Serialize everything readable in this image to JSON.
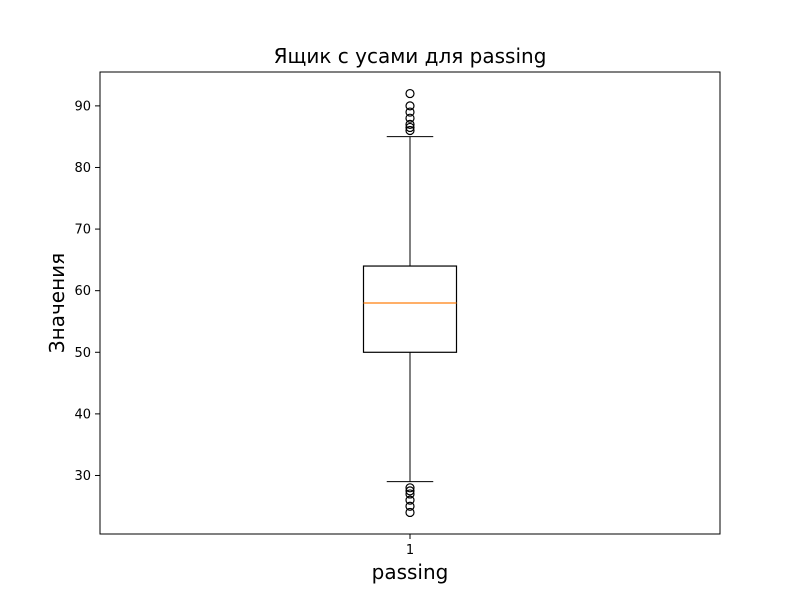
{
  "chart_data": {
    "type": "box",
    "title": "Ящик с усами для passing",
    "xlabel": "passing",
    "ylabel": "Значения",
    "categories": [
      "1"
    ],
    "ylim": [
      20.5,
      95.5
    ],
    "yticks": [
      30,
      40,
      50,
      60,
      70,
      80,
      90
    ],
    "grid": false,
    "legend": "none",
    "boxes": [
      {
        "category": "1",
        "whisker_low": 29,
        "q1": 50,
        "median": 58,
        "q3": 64,
        "whisker_high": 85,
        "outliers_low": [
          24,
          25,
          26,
          27,
          27.5,
          28
        ],
        "outliers_high": [
          86,
          86.5,
          87,
          88,
          89,
          90,
          92
        ]
      }
    ],
    "colors": {
      "box": "#000000",
      "median": "#ff7f0e",
      "whisker": "#000000",
      "flier": "#000000"
    }
  }
}
